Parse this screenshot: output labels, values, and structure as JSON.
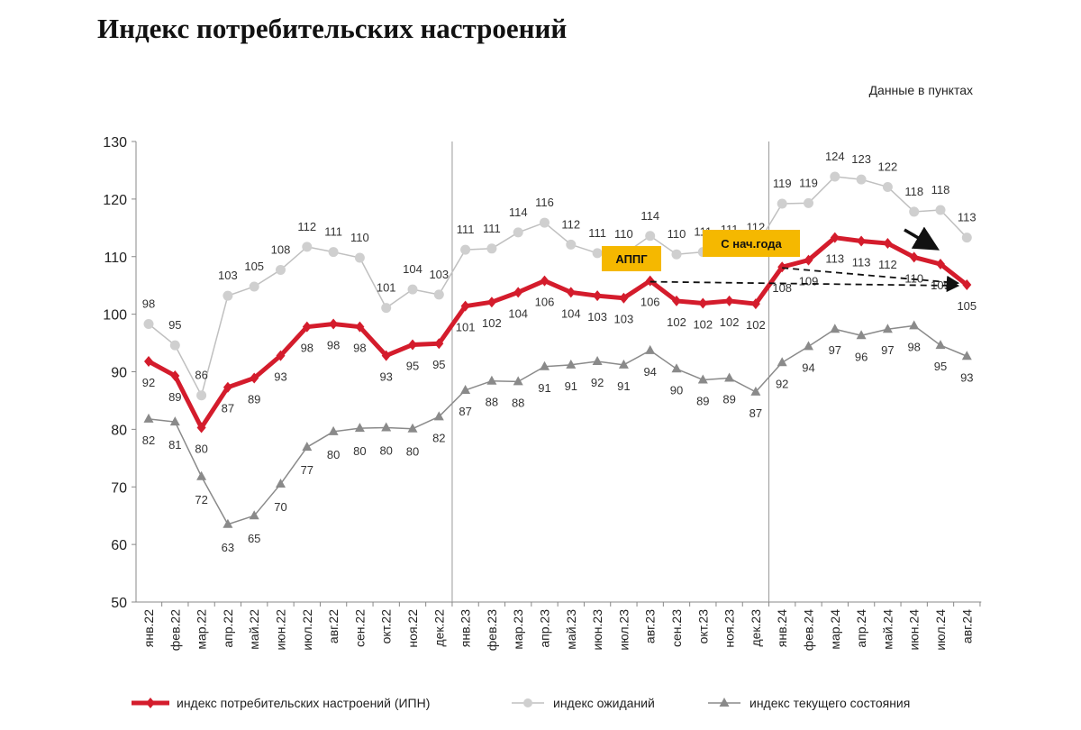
{
  "chart_data": {
    "type": "line",
    "title": "Индекс потребительских настроений",
    "units_note": "Данные в пунктах",
    "ylim": [
      50,
      130
    ],
    "yticks": [
      "50",
      "60",
      "70",
      "80",
      "90",
      "100",
      "110",
      "120",
      "130"
    ],
    "categories": [
      "янв.22",
      "фев.22",
      "мар.22",
      "апр.22",
      "май.22",
      "июн.22",
      "июл.22",
      "авг.22",
      "сен.22",
      "окт.22",
      "ноя.22",
      "дек.22",
      "янв.23",
      "фев.23",
      "мар.23",
      "апр.23",
      "май.23",
      "июн.23",
      "июл.23",
      "авг.23",
      "сен.23",
      "окт.23",
      "ноя.23",
      "дек.23",
      "янв.24",
      "фев.24",
      "мар.24",
      "апр.24",
      "май.24",
      "июн.24",
      "июл.24",
      "авг.24"
    ],
    "series": [
      {
        "name": "индекс потребительских настроений (ИПН)",
        "color": "#d41c2c",
        "values": [
          91.8,
          89.3,
          80.3,
          87.3,
          88.9,
          92.8,
          97.8,
          98.3,
          97.8,
          92.8,
          94.7,
          94.9,
          101.4,
          102.1,
          103.8,
          105.8,
          103.8,
          103.2,
          102.8,
          105.8,
          102.3,
          101.9,
          102.3,
          101.8,
          108.2,
          109.4,
          113.3,
          112.7,
          112.3,
          109.9,
          108.7,
          105.1
        ],
        "labels": [
          "92",
          "89",
          "80",
          "87",
          "89",
          "93",
          "98",
          "98",
          "98",
          "93",
          "95",
          "95",
          "101",
          "102",
          "104",
          "106",
          "104",
          "103",
          "103",
          "106",
          "102",
          "102",
          "102",
          "102",
          "108",
          "109",
          "113",
          "113",
          "112",
          "110",
          "109",
          "105"
        ]
      },
      {
        "name": "индекс ожиданий",
        "color": "#c8c8c8",
        "values": [
          98.3,
          94.6,
          85.9,
          103.2,
          104.8,
          107.7,
          111.7,
          110.8,
          109.8,
          101.1,
          104.3,
          103.4,
          111.2,
          111.4,
          114.2,
          115.9,
          112.1,
          110.6,
          110.4,
          113.6,
          110.4,
          110.8,
          111.2,
          111.6,
          119.2,
          119.3,
          123.9,
          123.4,
          122.1,
          117.8,
          118.1,
          113.3
        ],
        "labels": [
          "98",
          "95",
          "86",
          "103",
          "105",
          "108",
          "112",
          "111",
          "110",
          "101",
          "104",
          "103",
          "111",
          "111",
          "114",
          "116",
          "112",
          "111",
          "110",
          "114",
          "110",
          "111",
          "111",
          "112",
          "119",
          "119",
          "124",
          "123",
          "122",
          "118",
          "118",
          "113"
        ]
      },
      {
        "name": "индекс текущего состояния",
        "color": "#8c8c8c",
        "values": [
          81.8,
          81.3,
          71.8,
          63.5,
          65.0,
          70.5,
          76.9,
          79.6,
          80.2,
          80.3,
          80.1,
          82.2,
          86.8,
          88.4,
          88.3,
          90.9,
          91.2,
          91.8,
          91.2,
          93.7,
          90.5,
          88.6,
          88.9,
          86.5,
          91.6,
          94.4,
          97.4,
          96.3,
          97.4,
          98.0,
          94.6,
          92.7
        ],
        "labels": [
          "82",
          "81",
          "72",
          "63",
          "65",
          "70",
          "77",
          "80",
          "80",
          "80",
          "80",
          "82",
          "87",
          "88",
          "88",
          "91",
          "91",
          "92",
          "91",
          "94",
          "90",
          "89",
          "89",
          "87",
          "92",
          "94",
          "97",
          "96",
          "97",
          "98",
          "95",
          "93"
        ]
      }
    ],
    "annotations": [
      {
        "text": "АППГ"
      },
      {
        "text": "С нач.года"
      }
    ],
    "grid": false,
    "legend_position": "bottom"
  }
}
